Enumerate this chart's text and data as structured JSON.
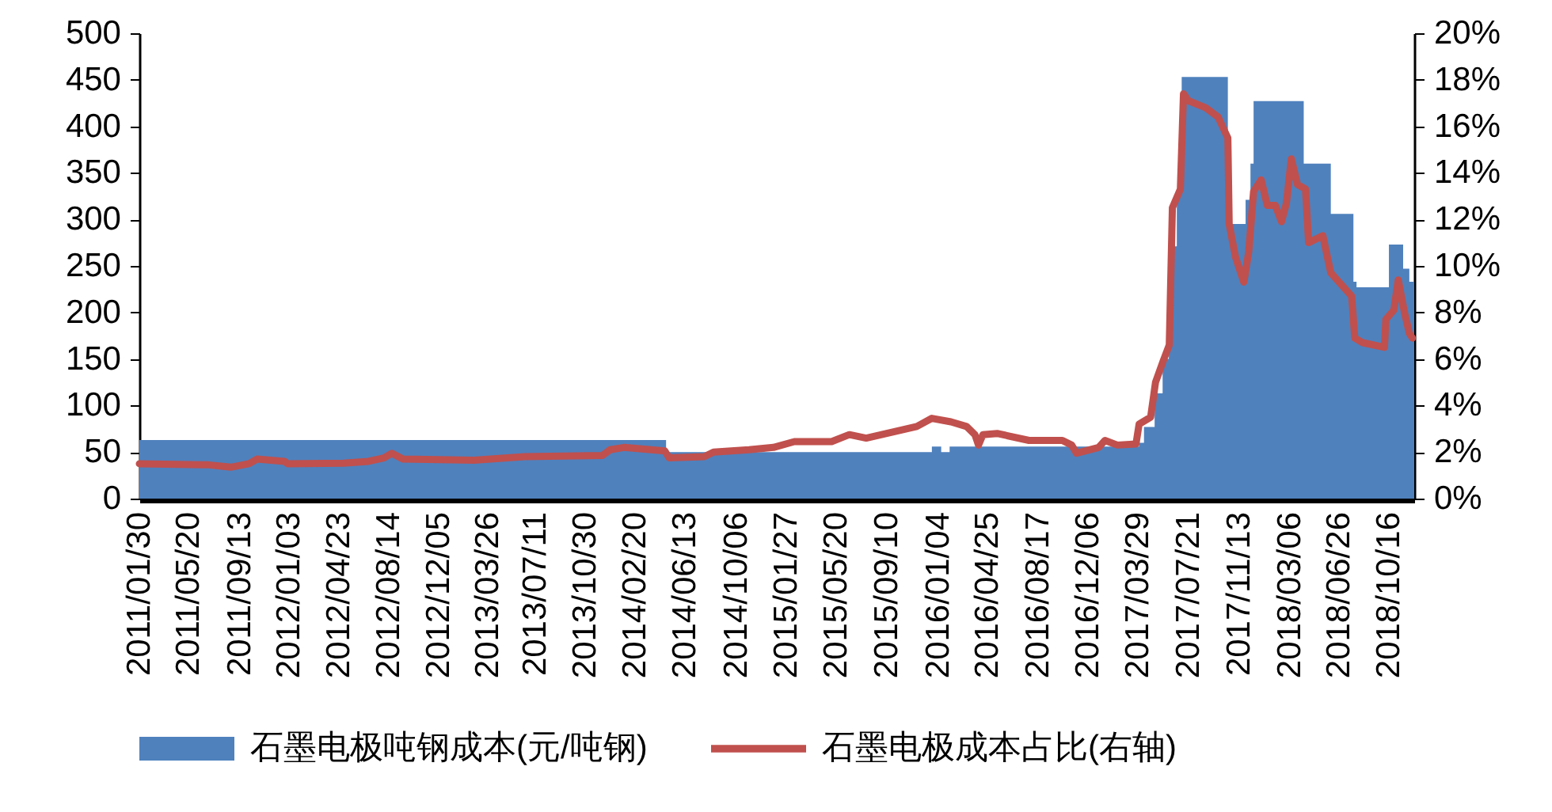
{
  "chart_data": {
    "type": "area",
    "legend": "bottom",
    "xlim": [
      "2011-01-30",
      "2018-12-12"
    ],
    "xticks": [
      {
        "value": "2011-01-30",
        "label": "2011/01/30"
      },
      {
        "value": "2011-05-20",
        "label": "2011/05/20"
      },
      {
        "value": "2011-09-13",
        "label": "2011/09/13"
      },
      {
        "value": "2012-01-03",
        "label": "2012/01/03"
      },
      {
        "value": "2012-04-23",
        "label": "2012/04/23"
      },
      {
        "value": "2012-08-14",
        "label": "2012/08/14"
      },
      {
        "value": "2012-12-05",
        "label": "2012/12/05"
      },
      {
        "value": "2013-03-26",
        "label": "2013/03/26"
      },
      {
        "value": "2013-07-11",
        "label": "2013/07/11"
      },
      {
        "value": "2013-10-30",
        "label": "2013/10/30"
      },
      {
        "value": "2014-02-20",
        "label": "2014/02/20"
      },
      {
        "value": "2014-06-13",
        "label": "2014/06/13"
      },
      {
        "value": "2014-10-06",
        "label": "2014/10/06"
      },
      {
        "value": "2015-01-27",
        "label": "2015/01/27"
      },
      {
        "value": "2015-05-20",
        "label": "2015/05/20"
      },
      {
        "value": "2015-09-10",
        "label": "2015/09/10"
      },
      {
        "value": "2016-01-04",
        "label": "2016/01/04"
      },
      {
        "value": "2016-04-25",
        "label": "2016/04/25"
      },
      {
        "value": "2016-08-17",
        "label": "2016/08/17"
      },
      {
        "value": "2016-12-06",
        "label": "2016/12/06"
      },
      {
        "value": "2017-03-29",
        "label": "2017/03/29"
      },
      {
        "value": "2017-07-21",
        "label": "2017/07/21"
      },
      {
        "value": "2017-11-13",
        "label": "2017/11/13"
      },
      {
        "value": "2018-03-06",
        "label": "2018/03/06"
      },
      {
        "value": "2018-06-26",
        "label": "2018/06/26"
      },
      {
        "value": "2018-10-16",
        "label": "2018/10/16"
      }
    ],
    "ylim": [
      0,
      500
    ],
    "yticks": [
      0,
      50,
      100,
      150,
      200,
      250,
      300,
      350,
      400,
      450,
      500
    ],
    "y2lim": [
      0,
      20
    ],
    "y2ticks": [
      {
        "value": 0,
        "label": "0%"
      },
      {
        "value": 2,
        "label": "2%"
      },
      {
        "value": 4,
        "label": "4%"
      },
      {
        "value": 6,
        "label": "6%"
      },
      {
        "value": 8,
        "label": "8%"
      },
      {
        "value": 10,
        "label": "10%"
      },
      {
        "value": 12,
        "label": "12%"
      },
      {
        "value": 14,
        "label": "14%"
      },
      {
        "value": 16,
        "label": "16%"
      },
      {
        "value": 18,
        "label": "18%"
      },
      {
        "value": 20,
        "label": "20%"
      }
    ],
    "series": [
      {
        "name": "石墨电极吨钢成本(元/吨钢)",
        "type": "area",
        "color": "#4f81bd",
        "x": [
          "2011-01-30",
          "2014-05-01",
          "2015-12-21",
          "2016-01-11",
          "2016-01-30",
          "2017-04-01",
          "2017-04-12",
          "2017-05-06",
          "2017-05-24",
          "2017-06-07",
          "2017-06-15",
          "2017-06-25",
          "2017-07-06",
          "2017-10-18",
          "2017-11-27",
          "2017-12-08",
          "2017-12-15",
          "2018-04-07",
          "2018-06-07",
          "2018-07-28",
          "2018-08-04",
          "2018-10-16",
          "2018-11-17",
          "2018-12-01",
          "2018-12-12"
        ],
        "values": [
          63,
          50,
          56,
          50,
          56,
          60,
          77,
          113,
          150,
          200,
          271,
          330,
          453,
          295,
          321,
          360,
          427,
          360,
          306,
          233,
          227,
          273,
          247,
          233,
          233
        ]
      },
      {
        "name": "石墨电极成本占比(右轴)",
        "type": "line",
        "axis": "y2",
        "color": "#c0504d",
        "x": [
          "2011-01-30",
          "2011-07-05",
          "2011-08-24",
          "2011-10-04",
          "2011-10-22",
          "2011-12-23",
          "2011-12-30",
          "2012-05-04",
          "2012-06-29",
          "2012-08-03",
          "2012-08-21",
          "2012-09-15",
          "2013-02-22",
          "2013-06-16",
          "2013-12-08",
          "2013-12-26",
          "2014-01-26",
          "2014-04-28",
          "2014-05-08",
          "2014-07-26",
          "2014-08-16",
          "2014-11-04",
          "2014-12-29",
          "2015-02-14",
          "2015-05-09",
          "2015-06-18",
          "2015-07-26",
          "2015-11-17",
          "2015-12-21",
          "2016-02-02",
          "2016-03-08",
          "2016-03-27",
          "2016-04-04",
          "2016-04-14",
          "2016-05-16",
          "2016-07-27",
          "2016-10-10",
          "2016-10-31",
          "2016-11-11",
          "2016-12-31",
          "2017-01-14",
          "2017-02-11",
          "2017-03-25",
          "2017-04-01",
          "2017-04-27",
          "2017-05-08",
          "2017-05-25",
          "2017-06-08",
          "2017-06-15",
          "2017-07-03",
          "2017-07-10",
          "2017-07-21",
          "2017-08-29",
          "2017-09-26",
          "2017-10-18",
          "2017-10-21",
          "2017-11-04",
          "2017-11-23",
          "2017-12-04",
          "2017-12-15",
          "2018-01-01",
          "2018-01-15",
          "2018-02-02",
          "2018-02-16",
          "2018-02-27",
          "2018-03-10",
          "2018-03-24",
          "2018-04-11",
          "2018-04-18",
          "2018-05-20",
          "2018-06-07",
          "2018-07-24",
          "2018-07-31",
          "2018-08-18",
          "2018-10-06",
          "2018-10-09",
          "2018-10-27",
          "2018-11-06",
          "2018-11-20",
          "2018-12-01",
          "2018-12-08"
        ],
        "values": [
          1.5,
          1.45,
          1.35,
          1.5,
          1.7,
          1.6,
          1.5,
          1.52,
          1.6,
          1.75,
          1.95,
          1.7,
          1.65,
          1.8,
          1.85,
          2.1,
          2.2,
          2.05,
          1.75,
          1.8,
          2.0,
          2.1,
          2.2,
          2.45,
          2.45,
          2.75,
          2.6,
          3.1,
          3.45,
          3.3,
          3.1,
          2.75,
          2.3,
          2.75,
          2.8,
          2.5,
          2.5,
          2.3,
          1.95,
          2.2,
          2.5,
          2.3,
          2.35,
          3.2,
          3.5,
          5.0,
          5.9,
          6.6,
          12.5,
          13.3,
          17.4,
          17.1,
          16.8,
          16.4,
          15.5,
          11.8,
          10.4,
          9.3,
          10.6,
          13.2,
          13.7,
          12.6,
          12.6,
          11.9,
          12.7,
          14.6,
          13.5,
          13.3,
          11.0,
          11.3,
          9.7,
          8.7,
          6.9,
          6.7,
          6.5,
          7.7,
          8.1,
          9.4,
          8.0,
          7.1,
          6.9
        ]
      }
    ]
  }
}
